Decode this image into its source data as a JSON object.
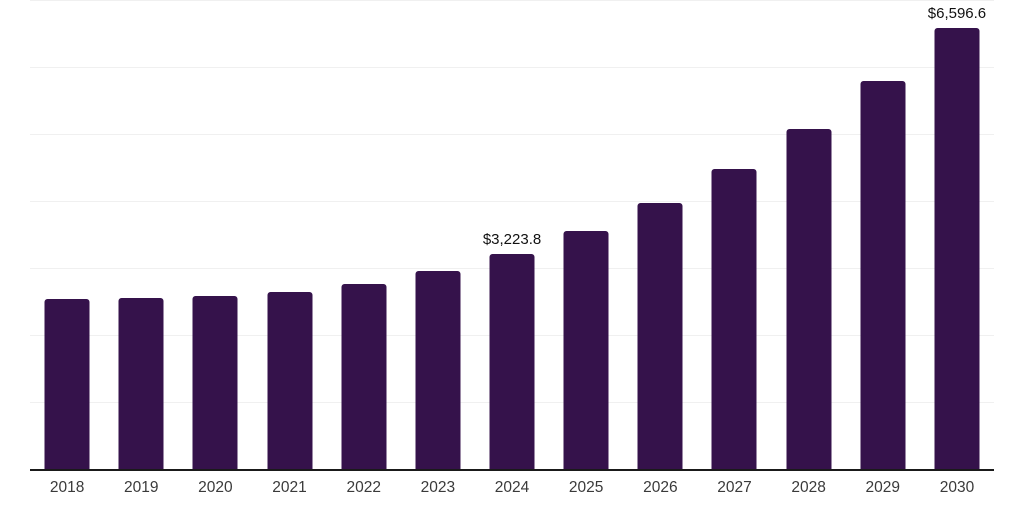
{
  "chart_data": {
    "type": "bar",
    "title": "",
    "xlabel": "",
    "ylabel": "",
    "categories": [
      "2018",
      "2019",
      "2020",
      "2021",
      "2022",
      "2023",
      "2024",
      "2025",
      "2026",
      "2027",
      "2028",
      "2029",
      "2030"
    ],
    "values": [
      2550,
      2565,
      2595,
      2655,
      2775,
      2970,
      3223.8,
      3565,
      3990,
      4490,
      5090,
      5805,
      6596.6
    ],
    "data_labels": [
      "",
      "",
      "",
      "",
      "",
      "",
      "$3,223.8",
      "",
      "",
      "",
      "",
      "",
      "$6,596.6"
    ],
    "ylim": [
      0,
      7000
    ],
    "grid_step": 1000,
    "grid_on": true,
    "legend_position": "none",
    "colors": {
      "bar": "#35124b",
      "gridline": "#f0f0f0",
      "axis_line": "#1a1a1a",
      "tick_label": "#3a3a3a",
      "data_label": "#111111",
      "background": "#ffffff"
    }
  }
}
